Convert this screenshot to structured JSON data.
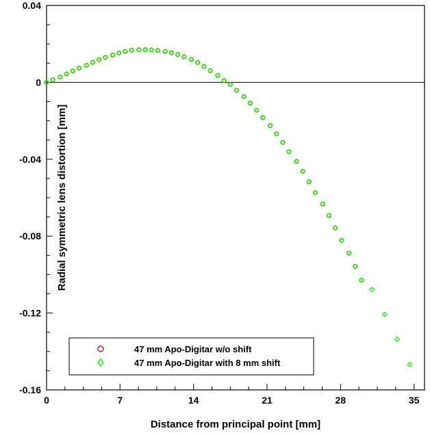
{
  "chart_data": {
    "type": "scatter",
    "title": "",
    "xlabel": "Distance from principal point [mm]",
    "ylabel": "Radial symmetric lens distortion [mm]",
    "xlim": [
      0,
      36
    ],
    "ylim": [
      -0.16,
      0.04
    ],
    "xticks": [
      0,
      7,
      14,
      21,
      28,
      35
    ],
    "xtick_labels": [
      "0",
      "7",
      "14",
      "21",
      "28",
      "35"
    ],
    "yticks": [
      0.04,
      0,
      -0.04,
      -0.08,
      -0.12,
      -0.16
    ],
    "ytick_labels": [
      "0.04",
      "0",
      "-0.04",
      "-0.08",
      "-0.12",
      "-0.16"
    ],
    "zero_line": true,
    "grid": false,
    "legend_position": "bottom-left",
    "series": [
      {
        "name": "47 mm Apo-Digitar w/o shift",
        "marker": "circle",
        "color": "#ff0000",
        "x": [
          0.0,
          0.6,
          1.3,
          1.9,
          2.5,
          3.1,
          3.8,
          4.4,
          5.0,
          5.6,
          6.3,
          6.9,
          7.5,
          8.1,
          8.8,
          9.4,
          10.0,
          10.6,
          11.3,
          11.9,
          12.5,
          13.1,
          13.8,
          14.4,
          15.0,
          15.6,
          16.3,
          16.9,
          17.5,
          18.1,
          18.8,
          19.4,
          20.0,
          20.6,
          21.3,
          21.9,
          22.5,
          23.1,
          23.8,
          24.4,
          25.0,
          25.6,
          26.3,
          26.9,
          27.5,
          28.1,
          28.8,
          29.4,
          30.0
        ],
        "y": [
          0.0,
          0.0013,
          0.0028,
          0.0044,
          0.0059,
          0.0074,
          0.0089,
          0.0104,
          0.0118,
          0.013,
          0.0142,
          0.0153,
          0.0161,
          0.0167,
          0.017,
          0.017,
          0.0169,
          0.0166,
          0.0161,
          0.0154,
          0.0145,
          0.0133,
          0.0119,
          0.0103,
          0.0083,
          0.0061,
          0.0036,
          0.0009,
          -0.0011,
          -0.0042,
          -0.0074,
          -0.0108,
          -0.0145,
          -0.0184,
          -0.0225,
          -0.0268,
          -0.0313,
          -0.0361,
          -0.0411,
          -0.0463,
          -0.0517,
          -0.0574,
          -0.0633,
          -0.0693,
          -0.0757,
          -0.0822,
          -0.0889,
          -0.0958,
          -0.1029
        ]
      },
      {
        "name": "47 mm Apo-Digitar with 8 mm shift",
        "marker": "diamond",
        "color": "#00ff00",
        "x": [
          0.0,
          0.6,
          1.3,
          1.9,
          2.5,
          3.1,
          3.8,
          4.4,
          5.0,
          5.6,
          6.3,
          6.9,
          7.5,
          8.1,
          8.8,
          9.4,
          10.0,
          10.6,
          11.3,
          11.9,
          12.5,
          13.1,
          13.8,
          14.4,
          15.0,
          15.6,
          16.3,
          16.9,
          17.5,
          18.1,
          18.8,
          19.4,
          20.0,
          20.6,
          21.3,
          21.9,
          22.5,
          23.1,
          23.8,
          24.4,
          25.0,
          25.6,
          26.3,
          26.9,
          27.5,
          28.1,
          28.8,
          29.4,
          30.0,
          31.0,
          32.2,
          33.4,
          34.6
        ],
        "y": [
          0.0,
          0.0013,
          0.0028,
          0.0044,
          0.0059,
          0.0074,
          0.0089,
          0.0104,
          0.0118,
          0.013,
          0.0142,
          0.0153,
          0.0161,
          0.0167,
          0.017,
          0.017,
          0.0169,
          0.0166,
          0.0161,
          0.0154,
          0.0145,
          0.0133,
          0.0119,
          0.0103,
          0.0083,
          0.0061,
          0.0036,
          0.0009,
          -0.0011,
          -0.0042,
          -0.0074,
          -0.0108,
          -0.0145,
          -0.0184,
          -0.0225,
          -0.0268,
          -0.0313,
          -0.0361,
          -0.0411,
          -0.0463,
          -0.0517,
          -0.0574,
          -0.0633,
          -0.0693,
          -0.0757,
          -0.0822,
          -0.0889,
          -0.0958,
          -0.1029,
          -0.1078,
          -0.1207,
          -0.1337,
          -0.1468
        ]
      }
    ]
  }
}
